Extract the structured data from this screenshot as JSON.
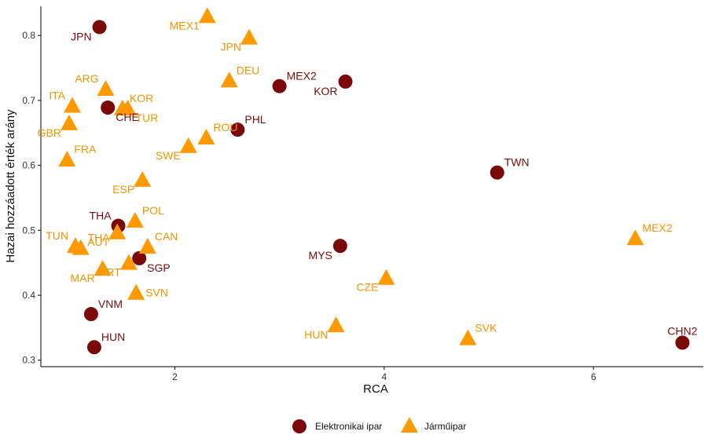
{
  "chart_data": {
    "type": "scatter",
    "title": "",
    "xlabel": "RCA",
    "ylabel": "Hazai hozzáadott érték arány",
    "xlim": [
      0.72,
      7.05
    ],
    "ylim": [
      0.29,
      0.845
    ],
    "x_ticks": [
      2,
      4,
      6
    ],
    "x_tick_labels": [
      "2",
      "4",
      "6"
    ],
    "y_ticks": [
      0.3,
      0.4,
      0.5,
      0.6,
      0.7,
      0.8
    ],
    "y_tick_labels": [
      "0.3",
      "0.4",
      "0.5",
      "0.6",
      "0.7",
      "0.8"
    ],
    "grid": false,
    "legend": {
      "position": "bottom"
    },
    "series": [
      {
        "name": "Elektronikai ipar",
        "marker": "circle",
        "point_color": "#7a0a0a",
        "label_color": "#7a0a0a",
        "points": [
          {
            "label": "JPN",
            "x": 1.28,
            "y": 0.813,
            "label_pos": "left-below"
          },
          {
            "label": "MEX2",
            "x": 3.0,
            "y": 0.722,
            "label_pos": "right-above"
          },
          {
            "label": "KOR",
            "x": 3.63,
            "y": 0.729,
            "label_pos": "left-below"
          },
          {
            "label": "CHE",
            "x": 1.36,
            "y": 0.689,
            "label_pos": "right-below"
          },
          {
            "label": "PHL",
            "x": 2.6,
            "y": 0.655,
            "label_pos": "right-above"
          },
          {
            "label": "TWN",
            "x": 5.08,
            "y": 0.589,
            "label_pos": "right-above"
          },
          {
            "label": "THA",
            "x": 1.46,
            "y": 0.507,
            "label_pos": "left-above"
          },
          {
            "label": "MYS",
            "x": 3.58,
            "y": 0.476,
            "label_pos": "left-below"
          },
          {
            "label": "SGP",
            "x": 1.66,
            "y": 0.457,
            "label_pos": "right-below"
          },
          {
            "label": "VNM",
            "x": 1.2,
            "y": 0.371,
            "label_pos": "right-above"
          },
          {
            "label": "HUN",
            "x": 1.23,
            "y": 0.32,
            "label_pos": "right-above"
          },
          {
            "label": "CHN2",
            "x": 6.85,
            "y": 0.327,
            "label_pos": "above"
          }
        ]
      },
      {
        "name": "Járműipar",
        "marker": "triangle",
        "point_color": "#ff9900",
        "label_color": "#f29400",
        "points": [
          {
            "label": "MEX1",
            "x": 2.31,
            "y": 0.83,
            "label_pos": "left-below"
          },
          {
            "label": "JPN",
            "x": 2.71,
            "y": 0.797,
            "label_pos": "left-below"
          },
          {
            "label": "DEU",
            "x": 2.52,
            "y": 0.731,
            "label_pos": "right-above"
          },
          {
            "label": "ARG",
            "x": 1.34,
            "y": 0.718,
            "label_pos": "left-above"
          },
          {
            "label": "ITA",
            "x": 1.02,
            "y": 0.692,
            "label_pos": "left-above"
          },
          {
            "label": "KOR",
            "x": 1.5,
            "y": 0.688,
            "label_pos": "right-above"
          },
          {
            "label": "TUR",
            "x": 1.55,
            "y": 0.688,
            "label_pos": "right-below"
          },
          {
            "label": "GBR",
            "x": 0.99,
            "y": 0.665,
            "label_pos": "left-below"
          },
          {
            "label": "ROU",
            "x": 2.3,
            "y": 0.643,
            "label_pos": "right-above"
          },
          {
            "label": "SWE",
            "x": 2.13,
            "y": 0.63,
            "label_pos": "left-below"
          },
          {
            "label": "FRA",
            "x": 0.97,
            "y": 0.609,
            "label_pos": "right-above"
          },
          {
            "label": "ESP",
            "x": 1.69,
            "y": 0.578,
            "label_pos": "left-below"
          },
          {
            "label": "POL",
            "x": 1.62,
            "y": 0.515,
            "label_pos": "right-above"
          },
          {
            "label": "MEX2",
            "x": 6.4,
            "y": 0.488,
            "label_pos": "right-above"
          },
          {
            "label": "TUN",
            "x": 1.05,
            "y": 0.476,
            "label_pos": "left-above"
          },
          {
            "label": "THA",
            "x": 1.1,
            "y": 0.473,
            "label_pos": "right-above"
          },
          {
            "label": "CAN",
            "x": 1.74,
            "y": 0.475,
            "label_pos": "right-above"
          },
          {
            "label": "AUT",
            "x": 1.45,
            "y": 0.497,
            "label_pos": "left-below"
          },
          {
            "label": "MAR",
            "x": 1.31,
            "y": 0.441,
            "label_pos": "left-below"
          },
          {
            "label": "PRT",
            "x": 1.56,
            "y": 0.45,
            "label_pos": "left-below"
          },
          {
            "label": "CZE",
            "x": 4.02,
            "y": 0.427,
            "label_pos": "left-below"
          },
          {
            "label": "SVN",
            "x": 1.63,
            "y": 0.404,
            "label_pos": "right"
          },
          {
            "label": "HUN",
            "x": 3.54,
            "y": 0.354,
            "label_pos": "left-below"
          },
          {
            "label": "SVK",
            "x": 4.8,
            "y": 0.334,
            "label_pos": "right-above"
          }
        ]
      }
    ]
  }
}
